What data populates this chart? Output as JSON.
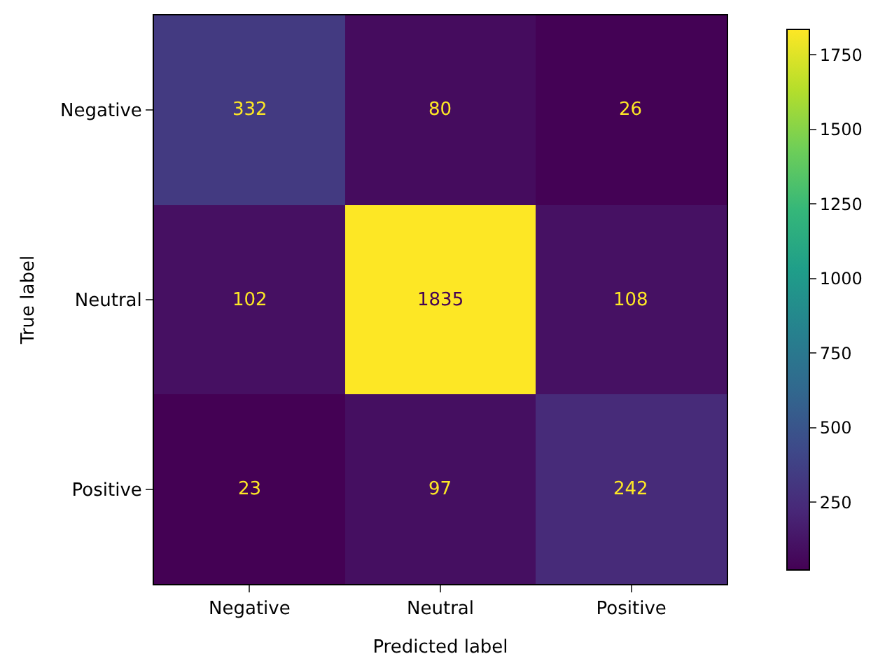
{
  "chart_data": {
    "type": "heatmap",
    "xlabel": "Predicted label",
    "ylabel": "True label",
    "categories": [
      "Negative",
      "Neutral",
      "Positive"
    ],
    "y_categories": [
      "Negative",
      "Neutral",
      "Positive"
    ],
    "cells": [
      [
        332,
        80,
        26
      ],
      [
        102,
        1835,
        108
      ],
      [
        23,
        97,
        242
      ]
    ],
    "clim": [
      23,
      1835
    ],
    "cticks": [
      250,
      500,
      750,
      1000,
      1250,
      1500,
      1750
    ],
    "data_labels": true
  }
}
